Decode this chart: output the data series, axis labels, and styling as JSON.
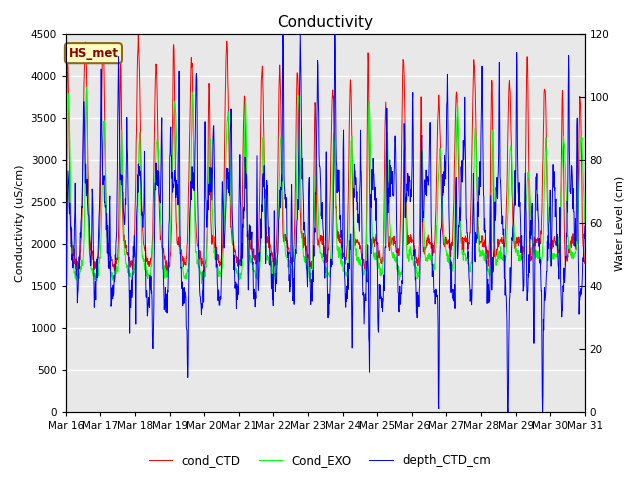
{
  "title": "Conductivity",
  "ylabel_left": "Conductivity (uS/cm)",
  "ylabel_right": "Water Level (cm)",
  "xlim_start": 16,
  "xlim_end": 31,
  "ylim_left": [
    0,
    4500
  ],
  "ylim_right": [
    0,
    120
  ],
  "xtick_labels": [
    "Mar 16",
    "Mar 17",
    "Mar 18",
    "Mar 19",
    "Mar 20",
    "Mar 21",
    "Mar 22",
    "Mar 23",
    "Mar 24",
    "Mar 25",
    "Mar 26",
    "Mar 27",
    "Mar 28",
    "Mar 29",
    "Mar 30",
    "Mar 31"
  ],
  "yticks_left": [
    0,
    500,
    1000,
    1500,
    2000,
    2500,
    3000,
    3500,
    4000,
    4500
  ],
  "yticks_right": [
    0,
    20,
    40,
    60,
    80,
    100,
    120
  ],
  "legend": [
    "cond_CTD",
    "Cond_EXO",
    "depth_CTD_cm"
  ],
  "legend_colors": [
    "red",
    "lime",
    "blue"
  ],
  "box_label": "HS_met",
  "box_facecolor": "#FFFFC0",
  "box_edgecolor": "#8B6914",
  "background_color": "#E8E8E8",
  "grid_color": "white",
  "title_fontsize": 11,
  "label_fontsize": 8,
  "tick_fontsize": 7.5
}
